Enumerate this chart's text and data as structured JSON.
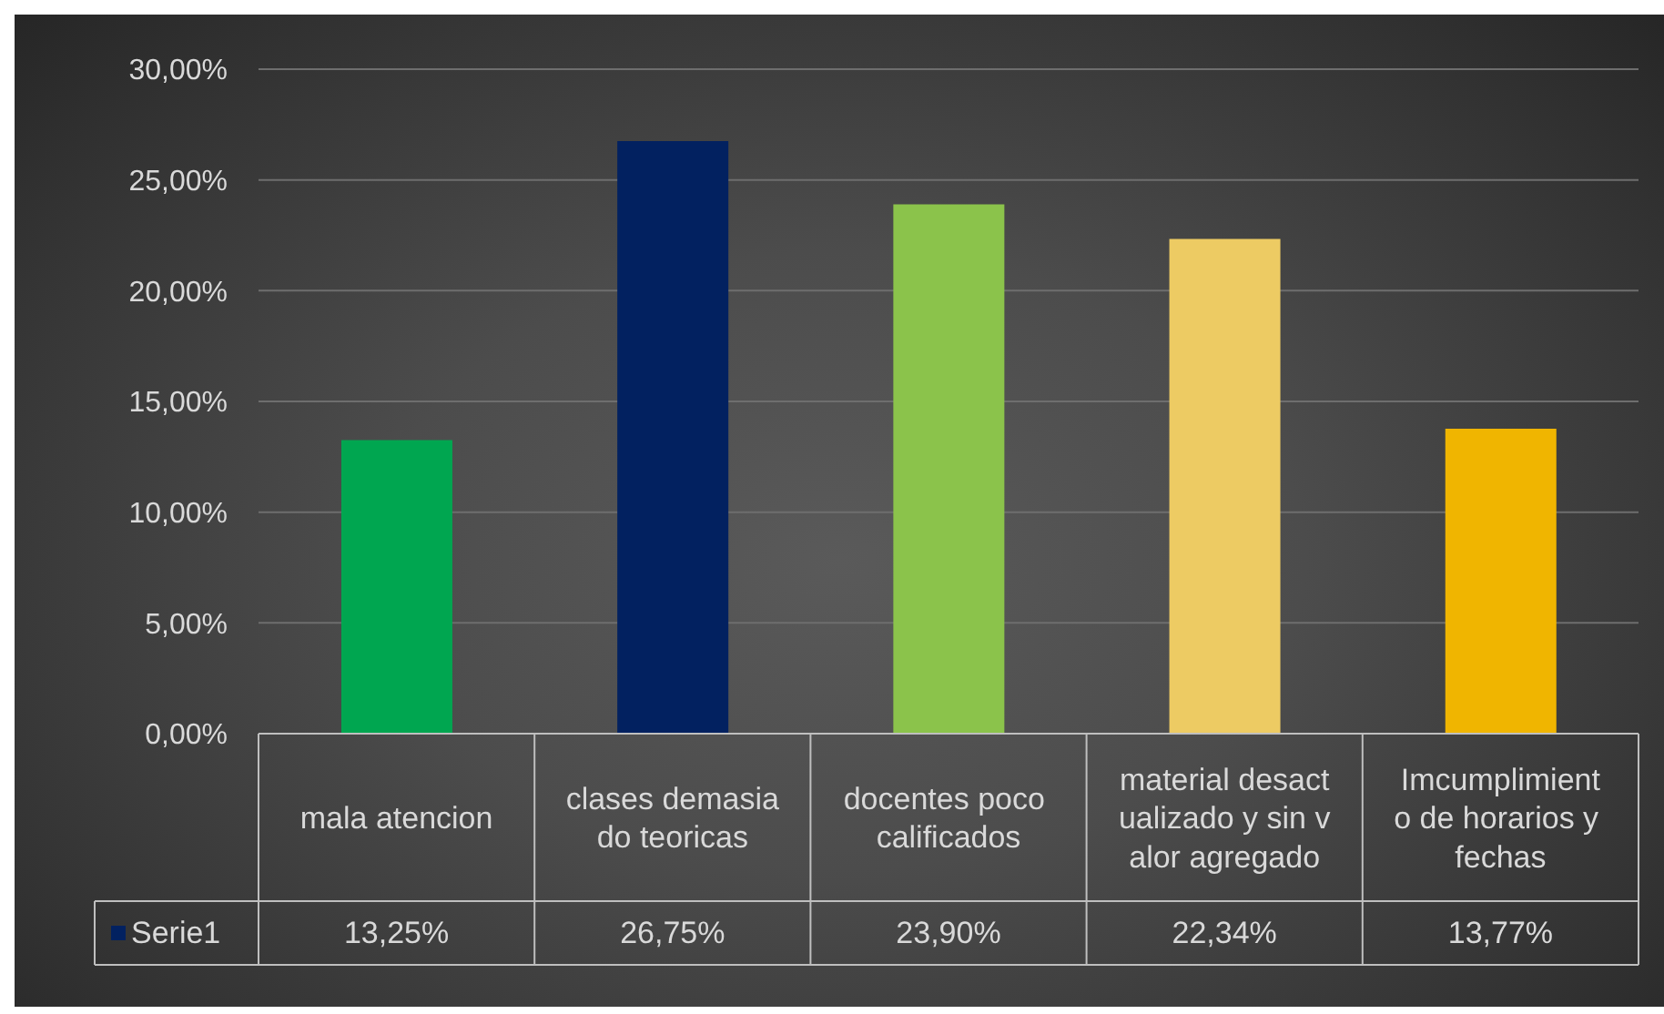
{
  "chart_data": {
    "type": "bar",
    "categories": [
      "mala atencion",
      "clases demasiado teoricas",
      "docentes poco calificados",
      "material desactualizado y sin valor agregado",
      "Imcumplimiento de horarios y fechas"
    ],
    "series": [
      {
        "name": "Serie1",
        "color": "#022160",
        "colors": [
          "#00a650",
          "#022160",
          "#8bc34b",
          "#edcb63",
          "#f0b500"
        ],
        "values": [
          13.25,
          26.75,
          23.9,
          22.34,
          13.77
        ],
        "value_labels": [
          "13,25%",
          "26,75%",
          "23,90%",
          "22,34%",
          "13,77%"
        ]
      }
    ],
    "ylim": [
      0,
      30
    ],
    "yticks": [
      {
        "value": 0,
        "label": "0,00%"
      },
      {
        "value": 5,
        "label": "5,00%"
      },
      {
        "value": 10,
        "label": "10,00%"
      },
      {
        "value": 15,
        "label": "15,00%"
      },
      {
        "value": 20,
        "label": "20,00%"
      },
      {
        "value": 25,
        "label": "25,00%"
      },
      {
        "value": 30,
        "label": "30,00%"
      }
    ],
    "grid": "y",
    "legend": "bottom"
  }
}
